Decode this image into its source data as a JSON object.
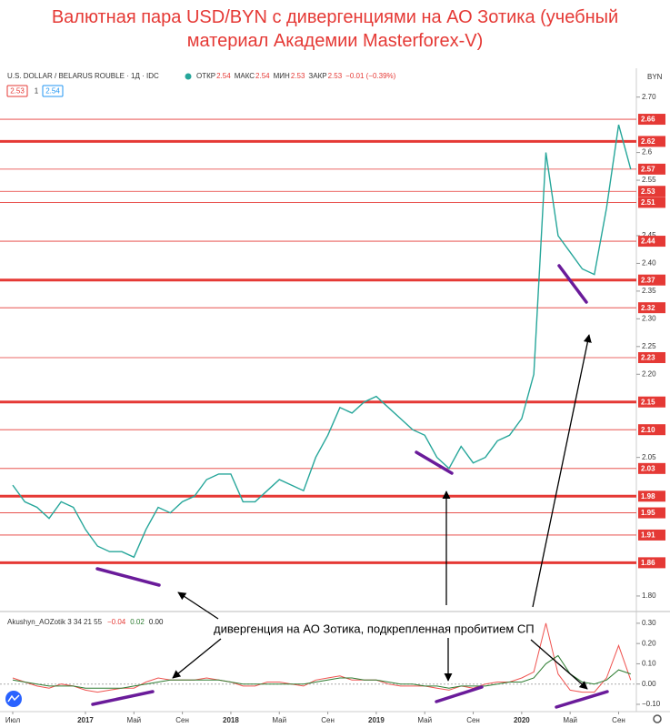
{
  "chart_data": {
    "type": "line",
    "title": "Валютная пара USD/BYN с дивергенциями на АО Зотика (учебный материал Академии Masterforex-V)",
    "symbol": "U.S. DOLLAR / BELARUS ROUBLE · 1Д · IDC",
    "currency": "BYN",
    "ohlc": [
      [
        "ОТКР",
        "2.54"
      ],
      [
        "МАКС",
        "2.54"
      ],
      [
        "МИН",
        "2.53"
      ],
      [
        "ЗАКР",
        "2.53"
      ]
    ],
    "change": "−0.01 (−0.39%)",
    "quote_boxes": [
      "2.53",
      "1",
      "2.54"
    ],
    "x": [
      "2016-07",
      "2016-08",
      "2016-09",
      "2016-10",
      "2016-11",
      "2016-12",
      "2017-01",
      "2017-02",
      "2017-03",
      "2017-04",
      "2017-05",
      "2017-06",
      "2017-07",
      "2017-08",
      "2017-09",
      "2017-10",
      "2017-11",
      "2017-12",
      "2018-01",
      "2018-02",
      "2018-03",
      "2018-04",
      "2018-05",
      "2018-06",
      "2018-07",
      "2018-08",
      "2018-09",
      "2018-10",
      "2018-11",
      "2018-12",
      "2019-01",
      "2019-02",
      "2019-03",
      "2019-04",
      "2019-05",
      "2019-06",
      "2019-07",
      "2019-08",
      "2019-09",
      "2019-10",
      "2019-11",
      "2019-12",
      "2020-01",
      "2020-02",
      "2020-03",
      "2020-04",
      "2020-05",
      "2020-06",
      "2020-07",
      "2020-08",
      "2020-09",
      "2020-10"
    ],
    "series": [
      {
        "name": "USD/BYN",
        "color": "#26a69a",
        "values": [
          2.0,
          1.97,
          1.96,
          1.94,
          1.97,
          1.96,
          1.92,
          1.89,
          1.88,
          1.88,
          1.87,
          1.92,
          1.96,
          1.95,
          1.97,
          1.98,
          2.01,
          2.02,
          2.02,
          1.97,
          1.97,
          1.99,
          2.01,
          2.0,
          1.99,
          2.05,
          2.09,
          2.14,
          2.13,
          2.15,
          2.16,
          2.14,
          2.12,
          2.1,
          2.09,
          2.05,
          2.03,
          2.07,
          2.04,
          2.05,
          2.08,
          2.09,
          2.12,
          2.2,
          2.6,
          2.45,
          2.42,
          2.39,
          2.38,
          2.5,
          2.65,
          2.57
        ]
      }
    ],
    "ylim": [
      1.772,
      2.752
    ],
    "yticks": [
      {
        "value": 2.7,
        "label": "2.70"
      },
      2.6,
      2.55,
      2.45,
      {
        "value": 2.4,
        "label": "2.40"
      },
      2.35,
      {
        "value": 2.3,
        "label": "2.30"
      },
      2.25,
      {
        "value": 2.2,
        "label": "2.20"
      },
      2.05,
      {
        "value": 1.8,
        "label": "1.80"
      }
    ],
    "levels_major": [
      2.62,
      2.37,
      2.15,
      1.98,
      1.86
    ],
    "levels_minor": [
      2.66,
      2.57,
      2.53,
      2.51,
      2.44,
      2.32,
      2.23,
      {
        "value": 2.1,
        "label": "2.10"
      },
      2.03,
      1.95,
      1.91
    ],
    "level_color": "#e53935",
    "xticks": [
      {
        "value": "2016-07",
        "label": "Июл"
      },
      {
        "value": "2017-01",
        "label": "2017"
      },
      {
        "value": "2017-05",
        "label": "Май"
      },
      {
        "value": "2017-09",
        "label": "Сен"
      },
      {
        "value": "2018-01",
        "label": "2018"
      },
      {
        "value": "2018-05",
        "label": "Май"
      },
      {
        "value": "2018-09",
        "label": "Сен"
      },
      {
        "value": "2019-01",
        "label": "2019"
      },
      {
        "value": "2019-05",
        "label": "Май"
      },
      {
        "value": "2019-09",
        "label": "Сен"
      },
      {
        "value": "2020-01",
        "label": "2020"
      },
      {
        "value": "2020-05",
        "label": "Май"
      },
      {
        "value": "2020-09",
        "label": "Сен"
      }
    ],
    "annotation": "дивергенция на АО Зотика, подкрепленная пробитием СП",
    "indicator": {
      "name": "Akushyn_AOZotik 3 34 21 55",
      "legend_values": [
        [
          "−0.04",
          "#e53935"
        ],
        [
          "0.02",
          "#2e7d32"
        ],
        [
          "0.00",
          "#222222"
        ]
      ],
      "ylim": [
        -0.136,
        0.331
      ],
      "yticks": [
        {
          "value": 0.3,
          "label": "0.30"
        },
        {
          "value": 0.2,
          "label": "0.20"
        },
        {
          "value": 0.1,
          "label": "0.10"
        },
        {
          "value": 0,
          "label": "0.00"
        },
        {
          "value": -0.1,
          "label": "−0.10"
        }
      ],
      "series": [
        {
          "color": "#ef5350",
          "values": [
            0.03,
            0.01,
            -0.01,
            -0.02,
            0.0,
            -0.01,
            -0.03,
            -0.04,
            -0.03,
            -0.02,
            -0.02,
            0.01,
            0.03,
            0.02,
            0.02,
            0.02,
            0.03,
            0.02,
            0.01,
            -0.01,
            -0.01,
            0.01,
            0.01,
            0.0,
            -0.01,
            0.02,
            0.03,
            0.04,
            0.02,
            0.02,
            0.02,
            0.0,
            -0.01,
            -0.01,
            -0.01,
            -0.02,
            -0.03,
            -0.01,
            -0.02,
            0.0,
            0.01,
            0.01,
            0.03,
            0.06,
            0.3,
            0.05,
            -0.03,
            -0.04,
            -0.04,
            0.03,
            0.19,
            0.02
          ]
        },
        {
          "color": "#2e7d32",
          "values": [
            0.02,
            0.01,
            0.0,
            -0.01,
            -0.01,
            -0.01,
            -0.02,
            -0.02,
            -0.02,
            -0.02,
            -0.01,
            0.0,
            0.01,
            0.02,
            0.02,
            0.02,
            0.02,
            0.02,
            0.01,
            0.0,
            0.0,
            0.0,
            0.0,
            0.0,
            0.0,
            0.01,
            0.02,
            0.03,
            0.03,
            0.02,
            0.02,
            0.01,
            0.0,
            0.0,
            -0.01,
            -0.01,
            -0.02,
            -0.01,
            -0.01,
            -0.01,
            0.0,
            0.01,
            0.01,
            0.03,
            0.1,
            0.14,
            0.05,
            0.01,
            0.0,
            0.02,
            0.07,
            0.05
          ]
        }
      ]
    }
  }
}
